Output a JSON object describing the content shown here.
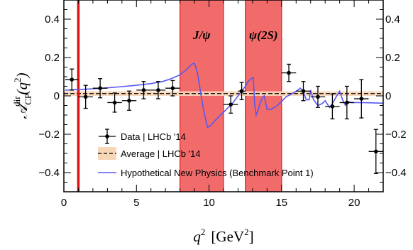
{
  "chart_data": {
    "type": "scatter",
    "xlabel": {
      "main": "q",
      "sup": "2",
      "unit": "[GeV",
      "unit_sup": "2",
      "unit_close": "]"
    },
    "ylabel": {
      "main": "𝒜",
      "sub": "CP",
      "sup": "dir",
      "arg": "(q",
      "arg_sup": "2",
      "arg_close": ")"
    },
    "xlim": [
      0,
      22
    ],
    "ylim": [
      -0.5,
      0.5
    ],
    "x_ticks": [
      0,
      5,
      10,
      15,
      20
    ],
    "y_ticks_left": [
      0.4,
      0.2,
      0,
      -0.2,
      -0.4
    ],
    "y_ticks_right": [
      0.4,
      0.2,
      0,
      -0.2,
      -0.4
    ],
    "tick_label_text": {
      "x": [
        "0",
        "5",
        "10",
        "15",
        "20"
      ],
      "y_left": [
        "0.4",
        "0.2",
        "0",
        "−0.2",
        "−0.4"
      ],
      "y_right": [
        "0.4",
        "0.2",
        "0",
        "−0.2",
        "−0.4"
      ]
    },
    "vetoed_regions": [
      {
        "label": "J/ψ",
        "x_range": [
          8.0,
          11.0
        ],
        "color": "#f26b6b"
      },
      {
        "label": "ψ(2S)",
        "x_range": [
          12.5,
          15.0
        ],
        "color": "#f26b6b"
      }
    ],
    "red_line_x": 1.0,
    "average": {
      "value": 0.012,
      "band": [
        0.0,
        0.024
      ]
    },
    "series": [
      {
        "name": "Data | LHCb '14",
        "points": [
          {
            "x": 0.55,
            "y": 0.085,
            "xerr": 0.45,
            "yerr": 0.055
          },
          {
            "x": 1.5,
            "y": -0.005,
            "xerr": 0.5,
            "yerr": 0.06
          },
          {
            "x": 2.5,
            "y": 0.04,
            "xerr": 0.5,
            "yerr": 0.05
          },
          {
            "x": 3.5,
            "y": -0.035,
            "xerr": 0.5,
            "yerr": 0.05
          },
          {
            "x": 4.5,
            "y": -0.025,
            "xerr": 0.5,
            "yerr": 0.05
          },
          {
            "x": 5.5,
            "y": 0.03,
            "xerr": 0.5,
            "yerr": 0.045
          },
          {
            "x": 6.5,
            "y": 0.03,
            "xerr": 0.5,
            "yerr": 0.045
          },
          {
            "x": 7.5,
            "y": 0.04,
            "xerr": 0.5,
            "yerr": 0.04
          },
          {
            "x": 11.5,
            "y": -0.045,
            "xerr": 0.5,
            "yerr": 0.045
          },
          {
            "x": 12.25,
            "y": 0.025,
            "xerr": 0.25,
            "yerr": 0.045
          },
          {
            "x": 15.5,
            "y": 0.12,
            "xerr": 0.5,
            "yerr": 0.045
          },
          {
            "x": 16.5,
            "y": 0.025,
            "xerr": 0.5,
            "yerr": 0.05
          },
          {
            "x": 17.5,
            "y": -0.005,
            "xerr": 0.5,
            "yerr": 0.055
          },
          {
            "x": 18.5,
            "y": -0.055,
            "xerr": 0.5,
            "yerr": 0.065
          },
          {
            "x": 19.5,
            "y": -0.035,
            "xerr": 0.5,
            "yerr": 0.085
          },
          {
            "x": 20.5,
            "y": -0.015,
            "xerr": 0.5,
            "yerr": 0.1
          },
          {
            "x": 21.5,
            "y": -0.29,
            "xerr": 0.5,
            "yerr": 0.115
          }
        ]
      },
      {
        "name": "Average | LHCb '14"
      },
      {
        "name": "Hypothetical New Physics (Benchmark Point 1)",
        "color": "#5858f0",
        "x": [
          0.1,
          1,
          2,
          3,
          4,
          5,
          6,
          6.8,
          7.4,
          8.0,
          8.5,
          8.8,
          9.0,
          9.2,
          9.35,
          9.5,
          9.7,
          9.9,
          10.1,
          10.4,
          10.8,
          11.2,
          11.6,
          11.9,
          12.2,
          12.5,
          12.7,
          12.9,
          13.05,
          13.15,
          13.25,
          13.4,
          13.6,
          13.8,
          14.0,
          14.3,
          14.7,
          15.0,
          15.3,
          15.7,
          16.0,
          16.3,
          16.5,
          16.7,
          16.9,
          17.0,
          17.2,
          17.5,
          17.8,
          18.0,
          18.3,
          18.5,
          18.8,
          19.0,
          19.2,
          19.4,
          19.6,
          19.8,
          20.2,
          21,
          22
        ],
        "y": [
          0.03,
          0.033,
          0.037,
          0.042,
          0.048,
          0.055,
          0.064,
          0.075,
          0.09,
          0.11,
          0.14,
          0.165,
          0.17,
          0.12,
          0.05,
          -0.02,
          -0.1,
          -0.165,
          -0.155,
          -0.13,
          -0.1,
          -0.07,
          -0.04,
          -0.01,
          0.02,
          0.05,
          0.075,
          0.09,
          0.095,
          -0.05,
          -0.1,
          -0.07,
          -0.02,
          0.0,
          -0.07,
          -0.07,
          -0.05,
          -0.03,
          -0.005,
          0.01,
          0.025,
          0.04,
          0.02,
          -0.02,
          -0.02,
          0.03,
          -0.02,
          -0.05,
          -0.04,
          -0.025,
          -0.06,
          -0.04,
          0.0,
          0.025,
          -0.02,
          -0.05,
          -0.03,
          -0.035,
          -0.035,
          -0.036,
          -0.038
        ]
      }
    ],
    "legend_position": "center-left"
  }
}
